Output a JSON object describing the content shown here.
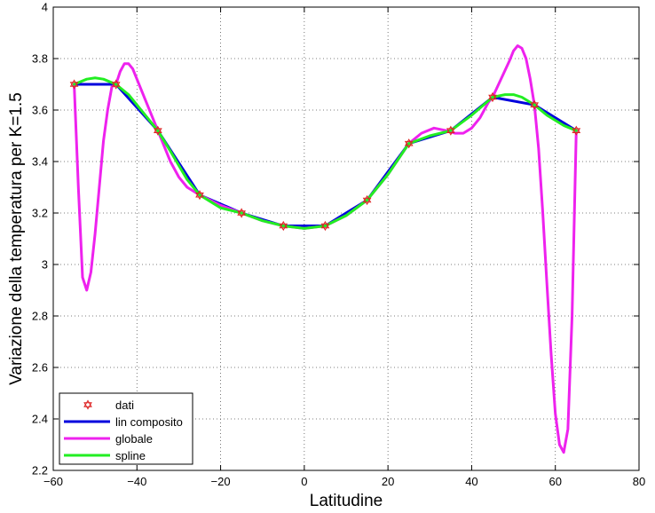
{
  "chart_data": {
    "type": "line",
    "title": "",
    "xlabel": "Latitudine",
    "ylabel": "Variazione della temperatura per K=1.5",
    "xlim": [
      -60,
      80
    ],
    "ylim": [
      2.2,
      4.0
    ],
    "xticks": [
      -60,
      -40,
      -20,
      0,
      20,
      40,
      60,
      80
    ],
    "yticks": [
      2.2,
      2.4,
      2.6,
      2.8,
      3,
      3.2,
      3.4,
      3.6,
      3.8,
      4
    ],
    "xtick_labels": [
      "−60",
      "−40",
      "−20",
      "0",
      "20",
      "40",
      "60",
      "80"
    ],
    "ytick_labels": [
      "2.2",
      "2.4",
      "2.6",
      "2.8",
      "3",
      "3.2",
      "3.4",
      "3.6",
      "3.8",
      "4"
    ],
    "grid": true,
    "legend_position": "bottom-left",
    "series": [
      {
        "name": "dati",
        "style": "markers",
        "marker": "hexagram",
        "color": "#dd2222",
        "x": [
          -55,
          -45,
          -35,
          -25,
          -15,
          -5,
          5,
          15,
          25,
          35,
          45,
          55,
          65
        ],
        "y": [
          3.7,
          3.7,
          3.52,
          3.27,
          3.2,
          3.15,
          3.15,
          3.25,
          3.47,
          3.52,
          3.65,
          3.62,
          3.52
        ]
      },
      {
        "name": "lin composito",
        "style": "line",
        "color": "#0000dd",
        "x": [
          -55,
          -45,
          -35,
          -25,
          -15,
          -5,
          5,
          15,
          25,
          35,
          45,
          55,
          65
        ],
        "y": [
          3.7,
          3.7,
          3.52,
          3.27,
          3.2,
          3.15,
          3.15,
          3.25,
          3.47,
          3.52,
          3.65,
          3.62,
          3.52
        ]
      },
      {
        "name": "globale",
        "style": "line",
        "color": "#ee22ee",
        "x": [
          -55,
          -54,
          -53,
          -52,
          -51,
          -50,
          -49,
          -48,
          -47,
          -46,
          -45,
          -44,
          -43,
          -42,
          -41,
          -40,
          -38,
          -36,
          -34,
          -32,
          -30,
          -28,
          -25,
          -20,
          -15,
          -10,
          -5,
          0,
          5,
          10,
          15,
          20,
          25,
          28,
          31,
          34,
          36,
          38,
          40,
          42,
          44,
          45,
          47,
          49,
          50,
          51,
          52,
          53,
          54,
          55,
          56,
          57,
          58,
          59,
          60,
          61,
          62,
          63,
          64,
          65
        ],
        "y": [
          3.7,
          3.3,
          2.95,
          2.9,
          2.97,
          3.12,
          3.3,
          3.48,
          3.6,
          3.69,
          3.7,
          3.75,
          3.78,
          3.78,
          3.76,
          3.72,
          3.64,
          3.56,
          3.48,
          3.4,
          3.34,
          3.3,
          3.27,
          3.23,
          3.2,
          3.17,
          3.15,
          3.14,
          3.15,
          3.19,
          3.25,
          3.35,
          3.47,
          3.51,
          3.53,
          3.52,
          3.51,
          3.51,
          3.53,
          3.57,
          3.63,
          3.65,
          3.72,
          3.79,
          3.83,
          3.85,
          3.84,
          3.8,
          3.72,
          3.62,
          3.45,
          3.2,
          2.92,
          2.65,
          2.42,
          2.3,
          2.27,
          2.36,
          2.8,
          3.52
        ]
      },
      {
        "name": "spline",
        "style": "line",
        "color": "#22ee22",
        "x": [
          -55,
          -52,
          -50,
          -48,
          -45,
          -42,
          -38,
          -35,
          -32,
          -28,
          -25,
          -20,
          -15,
          -10,
          -5,
          0,
          5,
          10,
          15,
          20,
          25,
          30,
          35,
          40,
          45,
          48,
          50,
          52,
          55,
          58,
          60,
          62,
          65
        ],
        "y": [
          3.7,
          3.72,
          3.725,
          3.72,
          3.7,
          3.66,
          3.58,
          3.52,
          3.44,
          3.33,
          3.27,
          3.22,
          3.2,
          3.17,
          3.15,
          3.14,
          3.15,
          3.19,
          3.25,
          3.35,
          3.47,
          3.5,
          3.52,
          3.58,
          3.65,
          3.66,
          3.66,
          3.65,
          3.62,
          3.58,
          3.56,
          3.54,
          3.52
        ]
      }
    ]
  }
}
